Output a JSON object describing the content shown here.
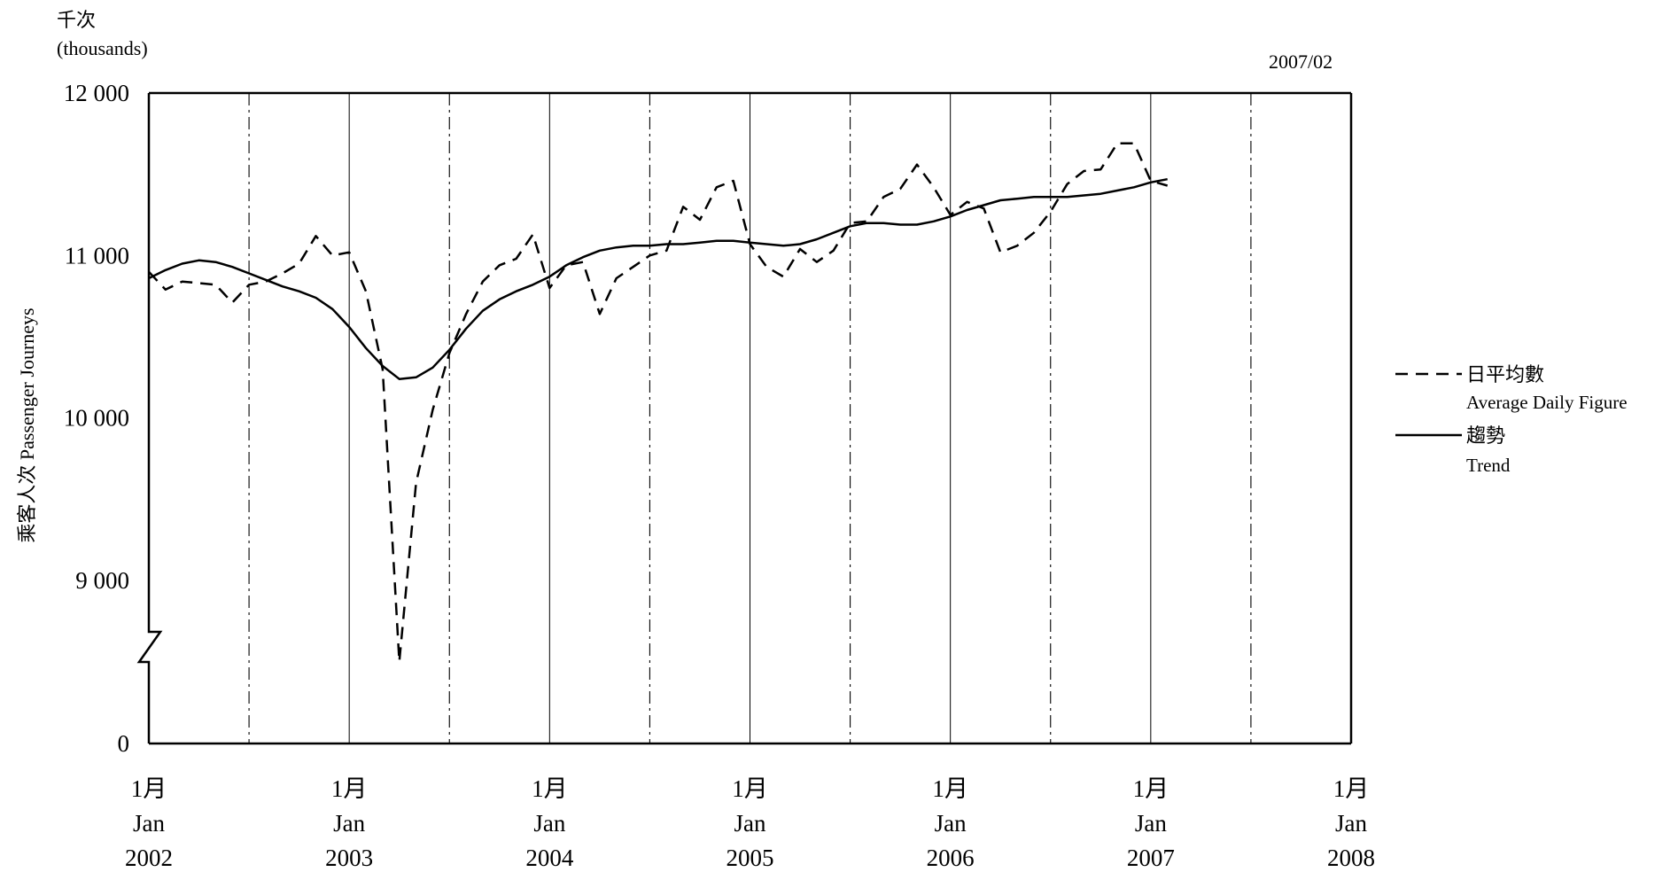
{
  "chart_data": {
    "type": "line",
    "unit_label_zh": "千次",
    "unit_label_en": "(thousands)",
    "period_label": "2007/02",
    "ylabel": "乘客人次  Passenger Journeys",
    "y_ticks": [
      {
        "value": 12000,
        "label": "12 000"
      },
      {
        "value": 11000,
        "label": "11 000"
      },
      {
        "value": 10000,
        "label": "10 000"
      },
      {
        "value": 9000,
        "label": "9 000"
      },
      {
        "value": 0,
        "label": "0"
      }
    ],
    "y_axis_break": {
      "below": 8500,
      "note": "axis break between 0 and 8500"
    },
    "xlim": [
      0,
      72
    ],
    "x_ticks": [
      {
        "pos": 0,
        "month_zh": "1月",
        "month_en": "Jan",
        "year": "2002"
      },
      {
        "pos": 12,
        "month_zh": "1月",
        "month_en": "Jan",
        "year": "2003"
      },
      {
        "pos": 24,
        "month_zh": "1月",
        "month_en": "Jan",
        "year": "2004"
      },
      {
        "pos": 36,
        "month_zh": "1月",
        "month_en": "Jan",
        "year": "2005"
      },
      {
        "pos": 48,
        "month_zh": "1月",
        "month_en": "Jan",
        "year": "2006"
      },
      {
        "pos": 60,
        "month_zh": "1月",
        "month_en": "Jan",
        "year": "2007"
      },
      {
        "pos": 72,
        "month_zh": "1月",
        "month_en": "Jan",
        "year": "2008"
      }
    ],
    "grid": {
      "solid_at_jan": true,
      "dashdot_at_jul": true
    },
    "legend_position": "right",
    "series": [
      {
        "name_zh": "日平均數",
        "name_en": "Average Daily Figure",
        "style": "dashed",
        "x": [
          0,
          1,
          2,
          3,
          4,
          5,
          6,
          7,
          8,
          9,
          10,
          11,
          12,
          13,
          14,
          15,
          16,
          17,
          18,
          19,
          20,
          21,
          22,
          23,
          24,
          25,
          26,
          27,
          28,
          29,
          30,
          31,
          32,
          33,
          34,
          35,
          36,
          37,
          38,
          39,
          40,
          41,
          42,
          43,
          44,
          45,
          46,
          47,
          48,
          49,
          50,
          51,
          52,
          53,
          54,
          55,
          56,
          57,
          58,
          59,
          60,
          61
        ],
        "values": [
          10900,
          10790,
          10840,
          10830,
          10820,
          10710,
          10820,
          10840,
          10890,
          10950,
          11120,
          11000,
          11020,
          10780,
          10300,
          8500,
          9600,
          10050,
          10400,
          10640,
          10840,
          10940,
          10980,
          11130,
          10800,
          10940,
          10960,
          10640,
          10860,
          10930,
          11000,
          11030,
          11300,
          11220,
          11420,
          11460,
          11070,
          10930,
          10870,
          11040,
          10960,
          11030,
          11200,
          11210,
          11360,
          11410,
          11560,
          11420,
          11250,
          11330,
          11290,
          11020,
          11060,
          11140,
          11270,
          11440,
          11520,
          11530,
          11690,
          11690,
          11460,
          11430
        ]
      },
      {
        "name_zh": "趨勢",
        "name_en": "Trend",
        "style": "solid",
        "x": [
          0,
          1,
          2,
          3,
          4,
          5,
          6,
          7,
          8,
          9,
          10,
          11,
          12,
          13,
          14,
          15,
          16,
          17,
          18,
          19,
          20,
          21,
          22,
          23,
          24,
          25,
          26,
          27,
          28,
          29,
          30,
          31,
          32,
          33,
          34,
          35,
          36,
          37,
          38,
          39,
          40,
          41,
          42,
          43,
          44,
          45,
          46,
          47,
          48,
          49,
          50,
          51,
          52,
          53,
          54,
          55,
          56,
          57,
          58,
          59,
          60,
          61
        ],
        "values": [
          10860,
          10910,
          10950,
          10970,
          10960,
          10930,
          10890,
          10850,
          10810,
          10780,
          10740,
          10670,
          10560,
          10430,
          10320,
          10240,
          10250,
          10310,
          10420,
          10550,
          10660,
          10730,
          10780,
          10820,
          10870,
          10940,
          10990,
          11030,
          11050,
          11060,
          11060,
          11070,
          11070,
          11080,
          11090,
          11090,
          11080,
          11070,
          11060,
          11070,
          11100,
          11140,
          11180,
          11200,
          11200,
          11190,
          11190,
          11210,
          11240,
          11280,
          11310,
          11340,
          11350,
          11360,
          11360,
          11360,
          11370,
          11380,
          11400,
          11420,
          11450,
          11470
        ]
      }
    ]
  }
}
